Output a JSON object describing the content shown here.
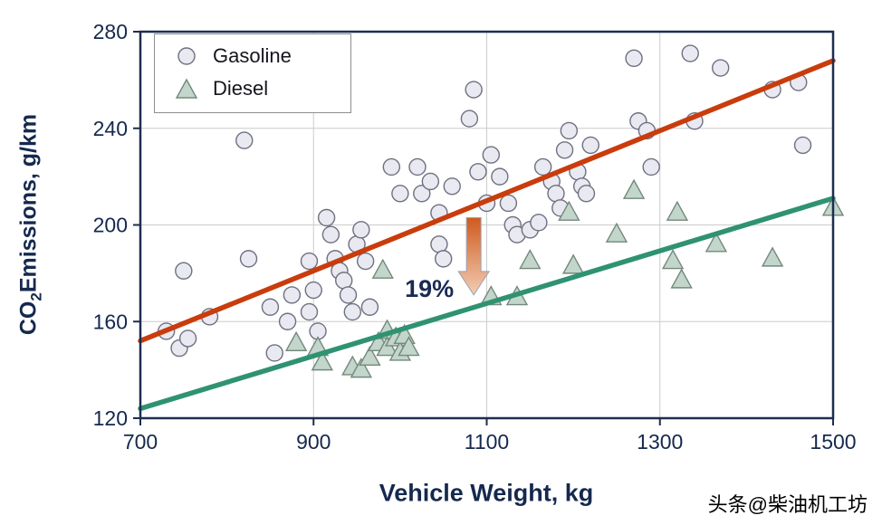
{
  "watermark": {
    "text": "头条@柴油机工坊"
  },
  "chart_data": {
    "type": "scatter",
    "title": "",
    "xlabel": "Vehicle Weight, kg",
    "ylabel": "CO2 Emissions, g/km",
    "ylabel_parts": {
      "prefix": "CO",
      "sub": "2",
      "rest": "Emissions, g/km"
    },
    "xlim": [
      700,
      1500
    ],
    "ylim": [
      120,
      280
    ],
    "xticks": [
      700,
      900,
      1100,
      1300,
      1500
    ],
    "yticks": [
      120,
      160,
      200,
      240,
      280
    ],
    "grid": true,
    "axis_color": "#1e2d50",
    "grid_color": "#cccccc",
    "legend_position": "top-left",
    "series": [
      {
        "name": "Gasoline",
        "marker": "circle",
        "fill": "#e9e9f2",
        "stroke": "#6f7080",
        "trend": {
          "x": [
            700,
            1500
          ],
          "y": [
            152,
            268
          ],
          "color": "#c93c0c"
        },
        "points": [
          [
            730,
            156
          ],
          [
            745,
            149
          ],
          [
            755,
            153
          ],
          [
            750,
            181
          ],
          [
            780,
            162
          ],
          [
            820,
            235
          ],
          [
            825,
            186
          ],
          [
            850,
            166
          ],
          [
            855,
            147
          ],
          [
            870,
            160
          ],
          [
            875,
            171
          ],
          [
            895,
            185
          ],
          [
            895,
            164
          ],
          [
            900,
            173
          ],
          [
            905,
            156
          ],
          [
            915,
            203
          ],
          [
            920,
            196
          ],
          [
            925,
            186
          ],
          [
            930,
            181
          ],
          [
            935,
            177
          ],
          [
            940,
            171
          ],
          [
            945,
            164
          ],
          [
            950,
            192
          ],
          [
            955,
            198
          ],
          [
            960,
            185
          ],
          [
            965,
            166
          ],
          [
            990,
            224
          ],
          [
            1000,
            213
          ],
          [
            1020,
            224
          ],
          [
            1025,
            213
          ],
          [
            1035,
            218
          ],
          [
            1045,
            205
          ],
          [
            1045,
            192
          ],
          [
            1050,
            186
          ],
          [
            1060,
            216
          ],
          [
            1080,
            244
          ],
          [
            1085,
            256
          ],
          [
            1090,
            222
          ],
          [
            1100,
            209
          ],
          [
            1105,
            229
          ],
          [
            1115,
            220
          ],
          [
            1125,
            209
          ],
          [
            1130,
            200
          ],
          [
            1135,
            196
          ],
          [
            1150,
            198
          ],
          [
            1160,
            201
          ],
          [
            1165,
            224
          ],
          [
            1175,
            218
          ],
          [
            1180,
            213
          ],
          [
            1185,
            207
          ],
          [
            1190,
            231
          ],
          [
            1195,
            239
          ],
          [
            1205,
            222
          ],
          [
            1210,
            216
          ],
          [
            1215,
            213
          ],
          [
            1220,
            233
          ],
          [
            1270,
            269
          ],
          [
            1275,
            243
          ],
          [
            1285,
            239
          ],
          [
            1290,
            224
          ],
          [
            1335,
            271
          ],
          [
            1340,
            243
          ],
          [
            1370,
            265
          ],
          [
            1430,
            256
          ],
          [
            1460,
            259
          ],
          [
            1465,
            233
          ]
        ]
      },
      {
        "name": "Diesel",
        "marker": "triangle",
        "fill": "#c2d6cb",
        "stroke": "#74887c",
        "trend": {
          "x": [
            700,
            1500
          ],
          "y": [
            124,
            211
          ],
          "color": "#2f9272"
        },
        "points": [
          [
            880,
            151
          ],
          [
            905,
            149
          ],
          [
            910,
            143
          ],
          [
            945,
            141
          ],
          [
            955,
            140
          ],
          [
            965,
            145
          ],
          [
            975,
            151
          ],
          [
            985,
            156
          ],
          [
            985,
            149
          ],
          [
            995,
            153
          ],
          [
            1000,
            147
          ],
          [
            1005,
            154
          ],
          [
            1010,
            149
          ],
          [
            980,
            181
          ],
          [
            1105,
            170
          ],
          [
            1135,
            170
          ],
          [
            1150,
            185
          ],
          [
            1195,
            205
          ],
          [
            1200,
            183
          ],
          [
            1250,
            196
          ],
          [
            1270,
            214
          ],
          [
            1315,
            185
          ],
          [
            1320,
            205
          ],
          [
            1325,
            177
          ],
          [
            1365,
            192
          ],
          [
            1430,
            186
          ],
          [
            1500,
            207
          ]
        ]
      }
    ],
    "annotation": {
      "label": "19%",
      "label_color": "#1b2a52",
      "arrow": {
        "x": 1085,
        "y_from": 203,
        "y_to": 171
      },
      "arrow_colors": [
        "#cf5a1e",
        "#f2cdb4"
      ],
      "arrow_outline": "#97a3b8"
    }
  }
}
